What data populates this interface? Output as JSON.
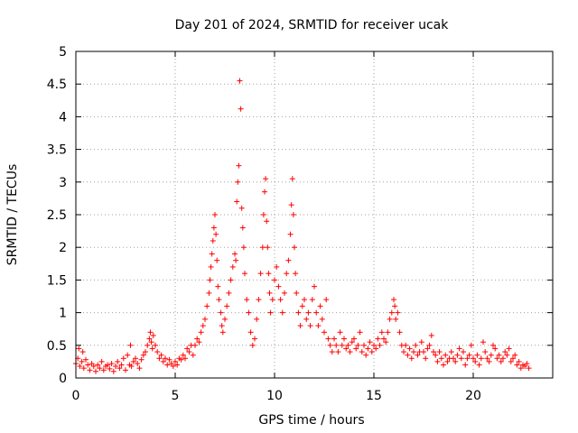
{
  "chart_data": {
    "type": "scatter",
    "title": "Day 201 of 2024, SRMTID for receiver ucak",
    "xlabel": "GPS time / hours",
    "ylabel": "SRMTID / TECUs",
    "xlim": [
      0,
      24
    ],
    "ylim": [
      0,
      5
    ],
    "xticks": [
      0,
      5,
      10,
      15,
      20
    ],
    "xtick_labels": [
      "0",
      "5",
      "10",
      "15",
      "20"
    ],
    "yticks": [
      0,
      0.5,
      1,
      1.5,
      2,
      2.5,
      3,
      3.5,
      4,
      4.5,
      5
    ],
    "ytick_labels": [
      "0",
      "0.5",
      "1",
      "1.5",
      "2",
      "2.5",
      "3",
      "3.5",
      "4",
      "4.5",
      "5"
    ],
    "grid": true,
    "marker": "+",
    "color": "#ff0000",
    "series": [
      {
        "name": "SRMTID",
        "points": [
          [
            0.0,
            0.22
          ],
          [
            0.1,
            0.3
          ],
          [
            0.15,
            0.45
          ],
          [
            0.2,
            0.18
          ],
          [
            0.3,
            0.25
          ],
          [
            0.35,
            0.4
          ],
          [
            0.4,
            0.15
          ],
          [
            0.5,
            0.28
          ],
          [
            0.6,
            0.2
          ],
          [
            0.7,
            0.12
          ],
          [
            0.8,
            0.22
          ],
          [
            0.9,
            0.18
          ],
          [
            1.0,
            0.1
          ],
          [
            1.1,
            0.2
          ],
          [
            1.2,
            0.15
          ],
          [
            1.3,
            0.25
          ],
          [
            1.4,
            0.12
          ],
          [
            1.5,
            0.18
          ],
          [
            1.6,
            0.2
          ],
          [
            1.7,
            0.14
          ],
          [
            1.8,
            0.22
          ],
          [
            1.9,
            0.1
          ],
          [
            2.0,
            0.18
          ],
          [
            2.1,
            0.25
          ],
          [
            2.2,
            0.15
          ],
          [
            2.3,
            0.2
          ],
          [
            2.4,
            0.3
          ],
          [
            2.5,
            0.12
          ],
          [
            2.6,
            0.35
          ],
          [
            2.7,
            0.2
          ],
          [
            2.75,
            0.5
          ],
          [
            2.8,
            0.18
          ],
          [
            2.9,
            0.25
          ],
          [
            3.0,
            0.3
          ],
          [
            3.1,
            0.22
          ],
          [
            3.2,
            0.15
          ],
          [
            3.3,
            0.28
          ],
          [
            3.4,
            0.35
          ],
          [
            3.5,
            0.4
          ],
          [
            3.6,
            0.5
          ],
          [
            3.7,
            0.6
          ],
          [
            3.75,
            0.7
          ],
          [
            3.8,
            0.55
          ],
          [
            3.85,
            0.45
          ],
          [
            3.9,
            0.65
          ],
          [
            4.0,
            0.5
          ],
          [
            4.1,
            0.4
          ],
          [
            4.2,
            0.3
          ],
          [
            4.3,
            0.35
          ],
          [
            4.4,
            0.25
          ],
          [
            4.5,
            0.3
          ],
          [
            4.6,
            0.2
          ],
          [
            4.7,
            0.28
          ],
          [
            4.8,
            0.22
          ],
          [
            4.9,
            0.18
          ],
          [
            5.0,
            0.25
          ],
          [
            5.1,
            0.2
          ],
          [
            5.2,
            0.3
          ],
          [
            5.3,
            0.28
          ],
          [
            5.4,
            0.35
          ],
          [
            5.5,
            0.3
          ],
          [
            5.6,
            0.45
          ],
          [
            5.7,
            0.4
          ],
          [
            5.8,
            0.5
          ],
          [
            5.9,
            0.35
          ],
          [
            6.0,
            0.5
          ],
          [
            6.1,
            0.6
          ],
          [
            6.2,
            0.55
          ],
          [
            6.3,
            0.7
          ],
          [
            6.4,
            0.8
          ],
          [
            6.5,
            0.9
          ],
          [
            6.6,
            1.1
          ],
          [
            6.7,
            1.3
          ],
          [
            6.75,
            1.5
          ],
          [
            6.8,
            1.7
          ],
          [
            6.85,
            1.9
          ],
          [
            6.9,
            2.1
          ],
          [
            6.95,
            2.3
          ],
          [
            7.0,
            2.5
          ],
          [
            7.05,
            2.2
          ],
          [
            7.1,
            1.8
          ],
          [
            7.15,
            1.4
          ],
          [
            7.2,
            1.2
          ],
          [
            7.3,
            1.0
          ],
          [
            7.35,
            0.8
          ],
          [
            7.4,
            0.7
          ],
          [
            7.5,
            0.9
          ],
          [
            7.6,
            1.1
          ],
          [
            7.7,
            1.3
          ],
          [
            7.8,
            1.5
          ],
          [
            7.9,
            1.7
          ],
          [
            8.0,
            1.9
          ],
          [
            8.05,
            1.8
          ],
          [
            8.1,
            2.7
          ],
          [
            8.15,
            3.0
          ],
          [
            8.2,
            3.25
          ],
          [
            8.25,
            4.55
          ],
          [
            8.3,
            4.12
          ],
          [
            8.35,
            2.6
          ],
          [
            8.4,
            2.3
          ],
          [
            8.45,
            2.0
          ],
          [
            8.5,
            1.6
          ],
          [
            8.6,
            1.2
          ],
          [
            8.7,
            1.0
          ],
          [
            8.8,
            0.7
          ],
          [
            8.9,
            0.5
          ],
          [
            9.0,
            0.6
          ],
          [
            9.1,
            0.9
          ],
          [
            9.2,
            1.2
          ],
          [
            9.3,
            1.6
          ],
          [
            9.4,
            2.0
          ],
          [
            9.45,
            2.5
          ],
          [
            9.5,
            2.85
          ],
          [
            9.55,
            3.05
          ],
          [
            9.6,
            2.4
          ],
          [
            9.65,
            2.0
          ],
          [
            9.7,
            1.6
          ],
          [
            9.75,
            1.3
          ],
          [
            9.8,
            1.0
          ],
          [
            9.9,
            1.2
          ],
          [
            10.0,
            1.5
          ],
          [
            10.1,
            1.7
          ],
          [
            10.2,
            1.4
          ],
          [
            10.3,
            1.2
          ],
          [
            10.4,
            1.0
          ],
          [
            10.5,
            1.3
          ],
          [
            10.6,
            1.6
          ],
          [
            10.7,
            1.8
          ],
          [
            10.8,
            2.2
          ],
          [
            10.85,
            2.65
          ],
          [
            10.9,
            3.05
          ],
          [
            10.95,
            2.5
          ],
          [
            11.0,
            2.0
          ],
          [
            11.05,
            1.6
          ],
          [
            11.1,
            1.3
          ],
          [
            11.2,
            1.0
          ],
          [
            11.3,
            0.8
          ],
          [
            11.4,
            1.1
          ],
          [
            11.5,
            1.2
          ],
          [
            11.6,
            0.9
          ],
          [
            11.7,
            1.0
          ],
          [
            11.8,
            0.8
          ],
          [
            11.9,
            1.2
          ],
          [
            12.0,
            1.4
          ],
          [
            12.1,
            1.0
          ],
          [
            12.2,
            0.8
          ],
          [
            12.3,
            1.1
          ],
          [
            12.4,
            0.9
          ],
          [
            12.5,
            0.7
          ],
          [
            12.6,
            1.2
          ],
          [
            12.7,
            0.6
          ],
          [
            12.8,
            0.5
          ],
          [
            12.9,
            0.4
          ],
          [
            13.0,
            0.6
          ],
          [
            13.1,
            0.5
          ],
          [
            13.2,
            0.4
          ],
          [
            13.3,
            0.7
          ],
          [
            13.4,
            0.5
          ],
          [
            13.5,
            0.6
          ],
          [
            13.6,
            0.45
          ],
          [
            13.7,
            0.5
          ],
          [
            13.8,
            0.4
          ],
          [
            13.9,
            0.55
          ],
          [
            14.0,
            0.6
          ],
          [
            14.1,
            0.45
          ],
          [
            14.2,
            0.5
          ],
          [
            14.3,
            0.7
          ],
          [
            14.4,
            0.4
          ],
          [
            14.5,
            0.5
          ],
          [
            14.6,
            0.35
          ],
          [
            14.7,
            0.45
          ],
          [
            14.8,
            0.55
          ],
          [
            14.9,
            0.4
          ],
          [
            15.0,
            0.5
          ],
          [
            15.1,
            0.45
          ],
          [
            15.2,
            0.6
          ],
          [
            15.3,
            0.5
          ],
          [
            15.4,
            0.7
          ],
          [
            15.5,
            0.6
          ],
          [
            15.6,
            0.55
          ],
          [
            15.7,
            0.7
          ],
          [
            15.8,
            0.9
          ],
          [
            15.9,
            1.0
          ],
          [
            16.0,
            1.2
          ],
          [
            16.05,
            1.1
          ],
          [
            16.1,
            0.9
          ],
          [
            16.2,
            1.0
          ],
          [
            16.3,
            0.7
          ],
          [
            16.4,
            0.5
          ],
          [
            16.5,
            0.4
          ],
          [
            16.6,
            0.5
          ],
          [
            16.7,
            0.35
          ],
          [
            16.8,
            0.45
          ],
          [
            16.9,
            0.3
          ],
          [
            17.0,
            0.4
          ],
          [
            17.1,
            0.5
          ],
          [
            17.2,
            0.35
          ],
          [
            17.3,
            0.4
          ],
          [
            17.4,
            0.55
          ],
          [
            17.5,
            0.4
          ],
          [
            17.6,
            0.3
          ],
          [
            17.7,
            0.45
          ],
          [
            17.8,
            0.5
          ],
          [
            17.9,
            0.65
          ],
          [
            18.0,
            0.4
          ],
          [
            18.1,
            0.35
          ],
          [
            18.2,
            0.25
          ],
          [
            18.3,
            0.4
          ],
          [
            18.4,
            0.3
          ],
          [
            18.5,
            0.2
          ],
          [
            18.6,
            0.35
          ],
          [
            18.7,
            0.25
          ],
          [
            18.8,
            0.3
          ],
          [
            18.9,
            0.4
          ],
          [
            19.0,
            0.3
          ],
          [
            19.1,
            0.25
          ],
          [
            19.2,
            0.35
          ],
          [
            19.3,
            0.45
          ],
          [
            19.4,
            0.3
          ],
          [
            19.5,
            0.4
          ],
          [
            19.6,
            0.2
          ],
          [
            19.7,
            0.3
          ],
          [
            19.8,
            0.35
          ],
          [
            19.9,
            0.5
          ],
          [
            20.0,
            0.3
          ],
          [
            20.1,
            0.25
          ],
          [
            20.2,
            0.35
          ],
          [
            20.3,
            0.2
          ],
          [
            20.4,
            0.3
          ],
          [
            20.5,
            0.55
          ],
          [
            20.6,
            0.4
          ],
          [
            20.7,
            0.3
          ],
          [
            20.8,
            0.25
          ],
          [
            20.9,
            0.35
          ],
          [
            21.0,
            0.5
          ],
          [
            21.1,
            0.45
          ],
          [
            21.2,
            0.3
          ],
          [
            21.3,
            0.35
          ],
          [
            21.4,
            0.25
          ],
          [
            21.5,
            0.3
          ],
          [
            21.6,
            0.4
          ],
          [
            21.7,
            0.35
          ],
          [
            21.8,
            0.45
          ],
          [
            21.9,
            0.25
          ],
          [
            22.0,
            0.3
          ],
          [
            22.1,
            0.35
          ],
          [
            22.2,
            0.2
          ],
          [
            22.3,
            0.25
          ],
          [
            22.4,
            0.15
          ],
          [
            22.5,
            0.2
          ],
          [
            22.6,
            0.18
          ],
          [
            22.7,
            0.22
          ],
          [
            22.8,
            0.15
          ]
        ]
      }
    ]
  }
}
